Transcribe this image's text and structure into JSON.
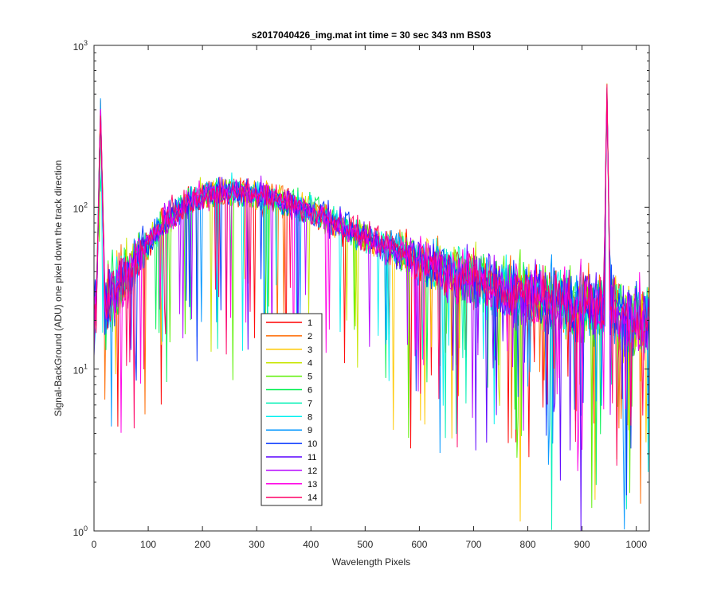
{
  "chart_data": {
    "type": "line",
    "title": "s2017040426_img.mat int time = 30 sec  343 nm BS03",
    "xlabel": "Wavelength Pixels",
    "ylabel": "Signal-BackGround (ADU) one pixel down the track direction",
    "xlim": [
      0,
      1024
    ],
    "ylim": [
      1,
      1000
    ],
    "yscale": "log",
    "x_ticks": [
      0,
      100,
      200,
      300,
      400,
      500,
      600,
      700,
      800,
      900,
      1000
    ],
    "x_tick_labels": [
      "0",
      "100",
      "200",
      "300",
      "400",
      "500",
      "600",
      "700",
      "800",
      "900",
      "1000"
    ],
    "y_ticks": [
      1,
      10,
      100,
      1000
    ],
    "y_tick_labels": [
      {
        "base": "10",
        "exp": "0"
      },
      {
        "base": "10",
        "exp": "1"
      },
      {
        "base": "10",
        "exp": "2"
      },
      {
        "base": "10",
        "exp": "3"
      }
    ],
    "grid": false,
    "legend_position": "lower-middle",
    "envelope": {
      "x": [
        0,
        5,
        12,
        20,
        40,
        60,
        80,
        100,
        130,
        160,
        200,
        240,
        280,
        320,
        360,
        400,
        440,
        480,
        520,
        560,
        600,
        640,
        680,
        720,
        760,
        800,
        840,
        880,
        920,
        940,
        946,
        952,
        970,
        1000,
        1024
      ],
      "y": [
        20,
        30,
        420,
        25,
        30,
        38,
        48,
        60,
        82,
        100,
        118,
        125,
        122,
        117,
        105,
        95,
        82,
        70,
        60,
        54,
        48,
        42,
        38,
        34,
        31,
        29,
        27,
        25,
        24,
        25,
        500,
        25,
        22,
        20,
        19
      ]
    },
    "series": [
      {
        "name": "1",
        "color": "#FF0000"
      },
      {
        "name": "2",
        "color": "#FF6A00"
      },
      {
        "name": "3",
        "color": "#FFC800"
      },
      {
        "name": "4",
        "color": "#C8E600"
      },
      {
        "name": "5",
        "color": "#5AF000"
      },
      {
        "name": "6",
        "color": "#00F050"
      },
      {
        "name": "7",
        "color": "#00F0B4"
      },
      {
        "name": "8",
        "color": "#00F0F0"
      },
      {
        "name": "9",
        "color": "#0096FF"
      },
      {
        "name": "10",
        "color": "#0032FF"
      },
      {
        "name": "11",
        "color": "#5A00FF"
      },
      {
        "name": "12",
        "color": "#B400FF"
      },
      {
        "name": "13",
        "color": "#FF00E6"
      },
      {
        "name": "14",
        "color": "#FF0064"
      }
    ]
  }
}
